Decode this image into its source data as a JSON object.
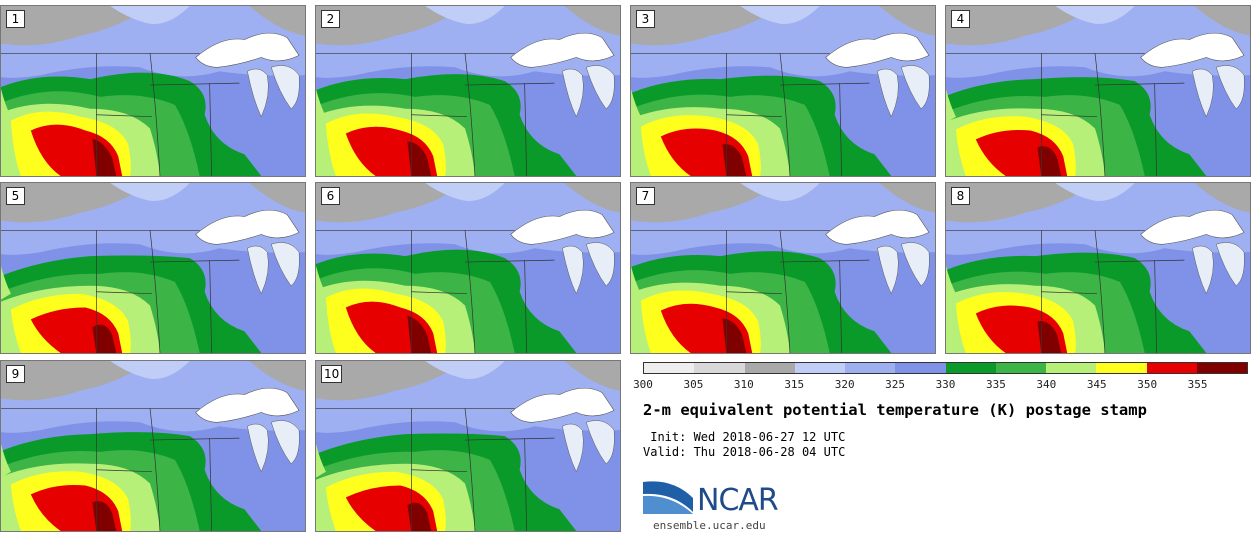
{
  "panels": [
    {
      "label": "1"
    },
    {
      "label": "2"
    },
    {
      "label": "3"
    },
    {
      "label": "4"
    },
    {
      "label": "5"
    },
    {
      "label": "6"
    },
    {
      "label": "7"
    },
    {
      "label": "8"
    },
    {
      "label": "9"
    },
    {
      "label": "10"
    }
  ],
  "colorbar": {
    "colors": [
      "#eeeeee",
      "#d8d8d8",
      "#a9a9a9",
      "#bfcdf7",
      "#9fb0f2",
      "#7f92e8",
      "#0a9a2a",
      "#3cb446",
      "#b6f078",
      "#ffff1e",
      "#e60000",
      "#800000"
    ],
    "ticks": [
      "300",
      "305",
      "310",
      "315",
      "320",
      "325",
      "330",
      "335",
      "340",
      "345",
      "350",
      "355"
    ]
  },
  "title": "2-m equivalent potential temperature (K) postage stamp",
  "init_line": " Init: Wed 2018-06-27 12 UTC",
  "valid_line": "Valid: Thu 2018-06-28 04 UTC",
  "logo": {
    "name": "NCAR",
    "url": "ensemble.ucar.edu",
    "colors": {
      "swoosh": "#1f5fa8",
      "text": "#1f4b8a"
    }
  }
}
